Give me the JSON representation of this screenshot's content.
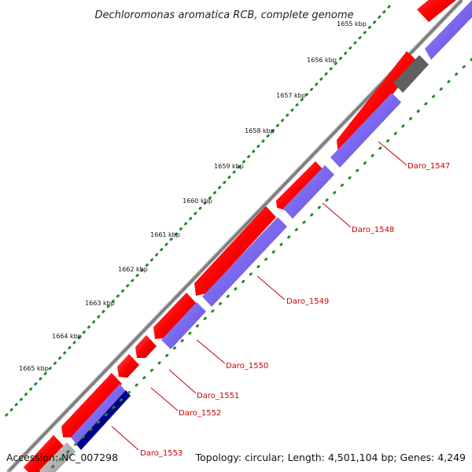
{
  "title": "Dechloromonas aromatica RCB, complete genome",
  "footer": {
    "accession": "Accession: NC_007298",
    "summary": "Topology: circular; Length: 4,501,104 bp; Genes: 4,249"
  },
  "scale_ticks": [
    "1655 kbp",
    "1656 kbp",
    "1657 kbp",
    "1658 kbp",
    "1659 kbp",
    "1660 kbp",
    "1661 kbp",
    "1662 kbp",
    "1663 kbp",
    "1664 kbp",
    "1665 kbp"
  ],
  "gene_labels": [
    "Daro_1547",
    "Daro_1548",
    "Daro_1549",
    "Daro_1550",
    "Daro_1551",
    "Daro_1552",
    "Daro_1553"
  ],
  "colors": {
    "forward_gene": "#ff0000",
    "reverse_gene": "#7b68ee",
    "reverse_gene_dark": "#00008b",
    "backbone": "#808080",
    "scale_dots": "#228b22",
    "label_text": "#cc0000",
    "gap_gene": "#606060"
  }
}
